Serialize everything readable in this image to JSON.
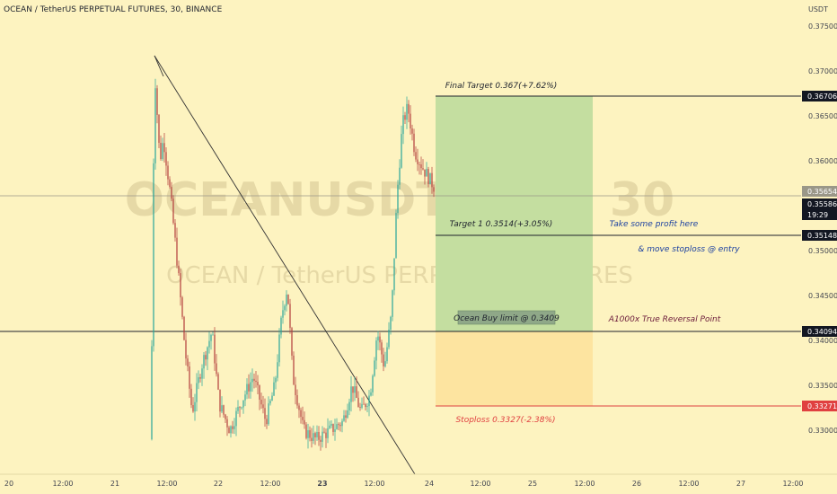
{
  "header": {
    "symbol_title": "OCEAN / TetherUS PERPETUAL FUTURES, 30, BINANCE",
    "currency_unit": "USDT"
  },
  "watermark": {
    "ticker": "OCEANUSDTPERP, 30",
    "description": "OCEAN / TetherUS PERPETUAL FUTURES"
  },
  "colors": {
    "background": "#fdf3c0",
    "candle_up": "#26a69a",
    "candle_down": "#b23a3a",
    "target_zone": "#c4dea0",
    "stop_zone": "#fde4a0",
    "note_blue": "#1a3fa0",
    "note_dark_red": "#6b1a3a",
    "stop_red": "#e04040"
  },
  "chart_data": {
    "type": "candlestick",
    "symbol": "OCEANUSDTPERP",
    "exchange": "BINANCE",
    "timeframe": "30",
    "ylim": [
      0.329,
      0.376
    ],
    "y_ticks": [
      "0.37500",
      "0.37000",
      "0.36500",
      "0.36000",
      "0.35500",
      "0.35000",
      "0.34500",
      "0.34000",
      "0.33500",
      "0.33000"
    ],
    "x_ticks": [
      "20",
      "12:00",
      "21",
      "12:00",
      "22",
      "12:00",
      "23",
      "12:00",
      "24",
      "12:00",
      "25",
      "12:00",
      "26",
      "12:00",
      "27",
      "12:00"
    ],
    "current_price": "0.35654",
    "price_levels": [
      {
        "label": "0.36706",
        "style": "dark"
      },
      {
        "label": "0.35654",
        "style": "grey"
      },
      {
        "label": "0.35586",
        "style": "dark"
      },
      {
        "label": "19:29",
        "style": "dark"
      },
      {
        "label": "0.35148",
        "style": "dark"
      },
      {
        "label": "0.34094",
        "style": "dark"
      },
      {
        "label": "0.33271",
        "style": "red"
      }
    ],
    "trade_setup": {
      "entry": 0.3409,
      "target_1": 0.3514,
      "final_target": 0.367,
      "stop_loss": 0.3327
    },
    "annotations": {
      "final_target": "Final Target 0.367(+7.62%)",
      "target_1": "Target 1 0.3514(+3.05%)",
      "take_profit": "Take some profit here",
      "move_stop": "& move stoploss @ entry",
      "buy_limit": "Ocean Buy limit @ 0.3409",
      "reversal": "A1000x True Reversal Point",
      "stoploss": "Stoploss 0.3327(-2.38%)"
    }
  }
}
